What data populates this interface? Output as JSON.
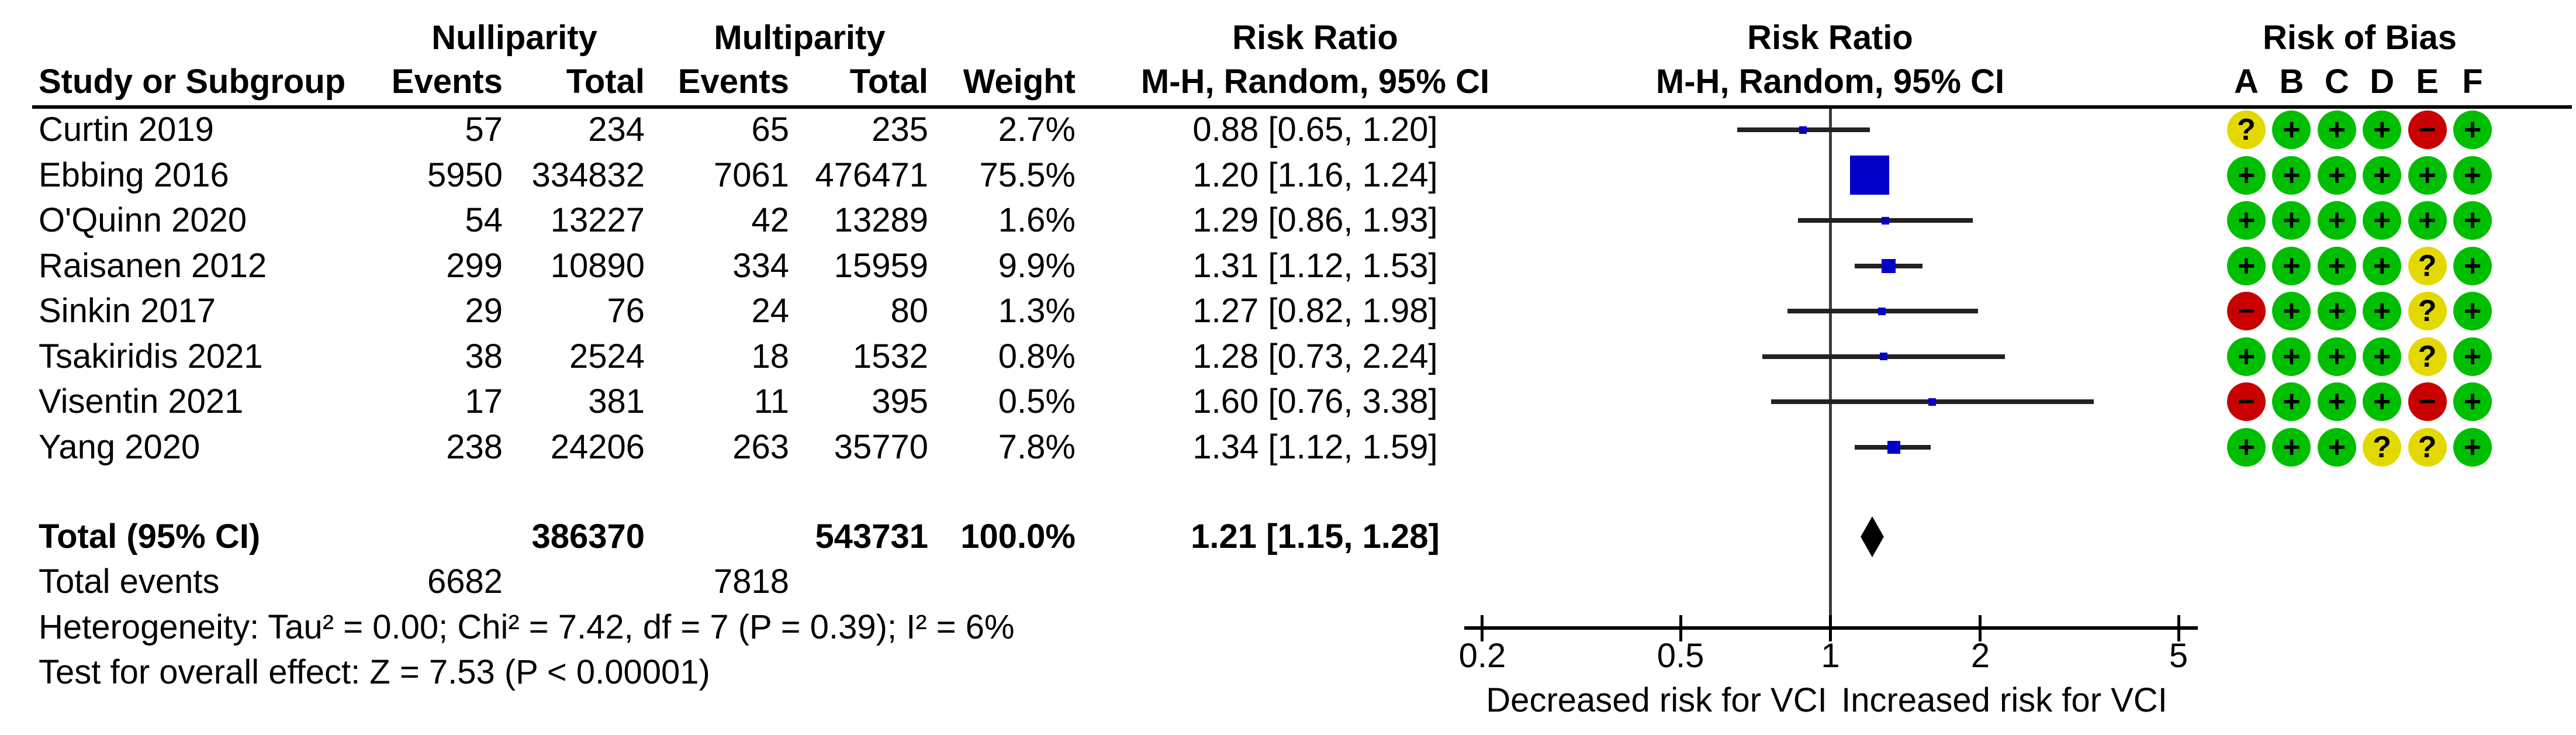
{
  "header": {
    "group1": "Nulliparity",
    "group2": "Multiparity",
    "study_col": "Study or Subgroup",
    "events_col": "Events",
    "total_col": "Total",
    "weight_col": "Weight",
    "rr_text_col_line1": "Risk Ratio",
    "rr_text_col_line2": "M-H, Random, 95% CI",
    "plot_col_line1": "Risk Ratio",
    "plot_col_line2": "M-H, Random, 95% CI",
    "rob_col": "Risk of Bias",
    "rob_letters": [
      "A",
      "B",
      "C",
      "D",
      "E",
      "F"
    ]
  },
  "chart_data": {
    "type": "forest",
    "effect_measure": "Risk Ratio",
    "method": "M-H, Random, 95% CI",
    "x_scale": "log",
    "axis_ticks": [
      0.2,
      0.5,
      1,
      2,
      5
    ],
    "axis_range": [
      0.2,
      5
    ],
    "axis_label_left": "Decreased risk for VCI",
    "axis_label_right": "Increased risk for VCI",
    "studies": [
      {
        "name": "Curtin 2019",
        "events1": 57,
        "total1": 234,
        "events2": 65,
        "total2": 235,
        "weight": "2.7%",
        "weight_pct": 2.7,
        "rr_text": "0.88 [0.65, 1.20]",
        "rr": 0.88,
        "ci_low": 0.65,
        "ci_high": 1.2,
        "rob": [
          "?",
          "+",
          "+",
          "+",
          "-",
          "+"
        ]
      },
      {
        "name": "Ebbing 2016",
        "events1": 5950,
        "total1": 334832,
        "events2": 7061,
        "total2": 476471,
        "weight": "75.5%",
        "weight_pct": 75.5,
        "rr_text": "1.20 [1.16, 1.24]",
        "rr": 1.2,
        "ci_low": 1.16,
        "ci_high": 1.24,
        "rob": [
          "+",
          "+",
          "+",
          "+",
          "+",
          "+"
        ]
      },
      {
        "name": "O'Quinn 2020",
        "events1": 54,
        "total1": 13227,
        "events2": 42,
        "total2": 13289,
        "weight": "1.6%",
        "weight_pct": 1.6,
        "rr_text": "1.29 [0.86, 1.93]",
        "rr": 1.29,
        "ci_low": 0.86,
        "ci_high": 1.93,
        "rob": [
          "+",
          "+",
          "+",
          "+",
          "+",
          "+"
        ]
      },
      {
        "name": "Raisanen 2012",
        "events1": 299,
        "total1": 10890,
        "events2": 334,
        "total2": 15959,
        "weight": "9.9%",
        "weight_pct": 9.9,
        "rr_text": "1.31 [1.12, 1.53]",
        "rr": 1.31,
        "ci_low": 1.12,
        "ci_high": 1.53,
        "rob": [
          "+",
          "+",
          "+",
          "+",
          "?",
          "+"
        ]
      },
      {
        "name": "Sinkin 2017",
        "events1": 29,
        "total1": 76,
        "events2": 24,
        "total2": 80,
        "weight": "1.3%",
        "weight_pct": 1.3,
        "rr_text": "1.27 [0.82, 1.98]",
        "rr": 1.27,
        "ci_low": 0.82,
        "ci_high": 1.98,
        "rob": [
          "-",
          "+",
          "+",
          "+",
          "?",
          "+"
        ]
      },
      {
        "name": "Tsakiridis 2021",
        "events1": 38,
        "total1": 2524,
        "events2": 18,
        "total2": 1532,
        "weight": "0.8%",
        "weight_pct": 0.8,
        "rr_text": "1.28 [0.73, 2.24]",
        "rr": 1.28,
        "ci_low": 0.73,
        "ci_high": 2.24,
        "rob": [
          "+",
          "+",
          "+",
          "+",
          "?",
          "+"
        ]
      },
      {
        "name": "Visentin 2021",
        "events1": 17,
        "total1": 381,
        "events2": 11,
        "total2": 395,
        "weight": "0.5%",
        "weight_pct": 0.5,
        "rr_text": "1.60 [0.76, 3.38]",
        "rr": 1.6,
        "ci_low": 0.76,
        "ci_high": 3.38,
        "rob": [
          "-",
          "+",
          "+",
          "+",
          "-",
          "+"
        ]
      },
      {
        "name": "Yang 2020",
        "events1": 238,
        "total1": 24206,
        "events2": 263,
        "total2": 35770,
        "weight": "7.8%",
        "weight_pct": 7.8,
        "rr_text": "1.34 [1.12, 1.59]",
        "rr": 1.34,
        "ci_low": 1.12,
        "ci_high": 1.59,
        "rob": [
          "+",
          "+",
          "+",
          "?",
          "?",
          "+"
        ]
      }
    ],
    "total": {
      "label": "Total (95% CI)",
      "total1": 386370,
      "total2": 543731,
      "weight": "100.0%",
      "rr_text": "1.21 [1.15, 1.28]",
      "rr": 1.21,
      "ci_low": 1.15,
      "ci_high": 1.28
    },
    "total_events": {
      "label": "Total events",
      "events1": 6682,
      "events2": 7818
    },
    "heterogeneity": "Heterogeneity: Tau² = 0.00; Chi² = 7.42, df = 7 (P = 0.39); I² = 6%",
    "overall_effect": "Test for overall effect: Z = 7.53 (P < 0.00001)"
  },
  "colors": {
    "square": "#0000c8",
    "ci_line": "#222222",
    "diamond": "#000000",
    "center_line": "#3d3d3d",
    "axis_line": "#000000",
    "rob_plus": "#00be00",
    "rob_question": "#e3d900",
    "rob_minus": "#c80000"
  }
}
